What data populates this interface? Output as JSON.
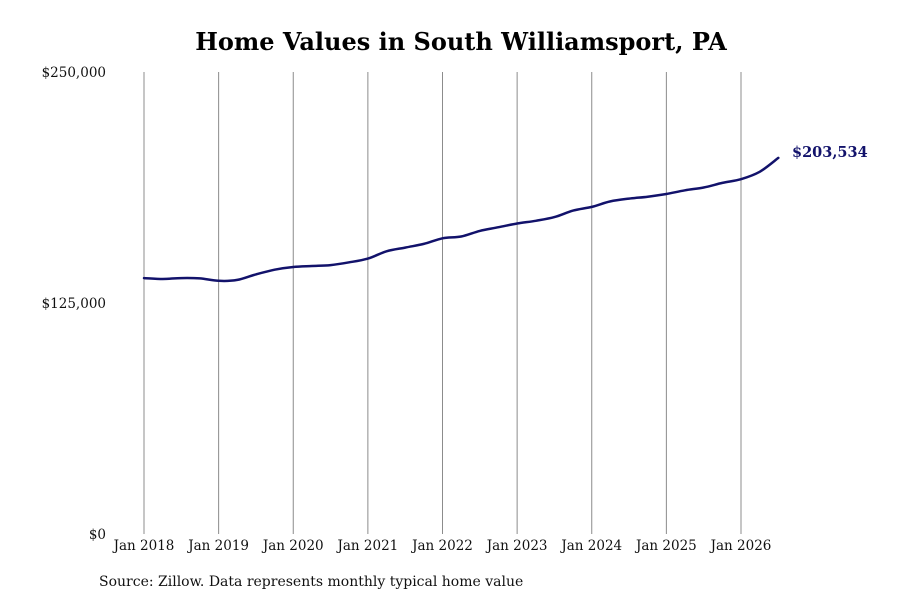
{
  "colors": {
    "line": "#12126b",
    "grid": "#8c8c8c",
    "background": "#ffffff"
  },
  "source_note": "Source: Zillow. Data represents monthly typical home value",
  "chart_data": {
    "type": "line",
    "title": "Home Values in South Williamsport, PA",
    "xlabel": "",
    "ylabel": "",
    "ylim": [
      0,
      250000
    ],
    "y_ticks": [
      0,
      125000,
      250000
    ],
    "y_tick_labels": [
      "$0",
      "$125,000",
      "$250,000"
    ],
    "x_range": [
      "2018-01",
      "2026-07"
    ],
    "x_ticks": [
      "2018-01",
      "2019-01",
      "2020-01",
      "2021-01",
      "2022-01",
      "2023-01",
      "2024-01",
      "2025-01",
      "2026-01"
    ],
    "x_tick_labels": [
      "Jan 2018",
      "Jan 2019",
      "Jan 2020",
      "Jan 2021",
      "Jan 2022",
      "Jan 2023",
      "Jan 2024",
      "Jan 2025",
      "Jan 2026"
    ],
    "grid": "vertical",
    "legend": "none",
    "end_label": "$203,534",
    "series": [
      {
        "x": [
          "2018-01",
          "2018-04",
          "2018-07",
          "2018-10",
          "2019-01",
          "2019-04",
          "2019-07",
          "2019-10",
          "2020-01",
          "2020-04",
          "2020-07",
          "2020-10",
          "2021-01",
          "2021-04",
          "2021-07",
          "2021-10",
          "2022-01",
          "2022-04",
          "2022-07",
          "2022-10",
          "2023-01",
          "2023-04",
          "2023-07",
          "2023-10",
          "2024-01",
          "2024-04",
          "2024-07",
          "2024-10",
          "2025-01",
          "2025-04",
          "2025-07",
          "2025-10",
          "2026-01",
          "2026-04",
          "2026-07"
        ],
        "values": [
          138500,
          138000,
          138500,
          138300,
          137000,
          137500,
          140500,
          143000,
          144500,
          145000,
          145500,
          147000,
          149000,
          153000,
          155000,
          157000,
          160000,
          161000,
          164000,
          166000,
          168000,
          169500,
          171500,
          175000,
          177000,
          180000,
          181500,
          182500,
          184000,
          186000,
          187500,
          190000,
          192000,
          196000,
          203534
        ]
      }
    ]
  }
}
